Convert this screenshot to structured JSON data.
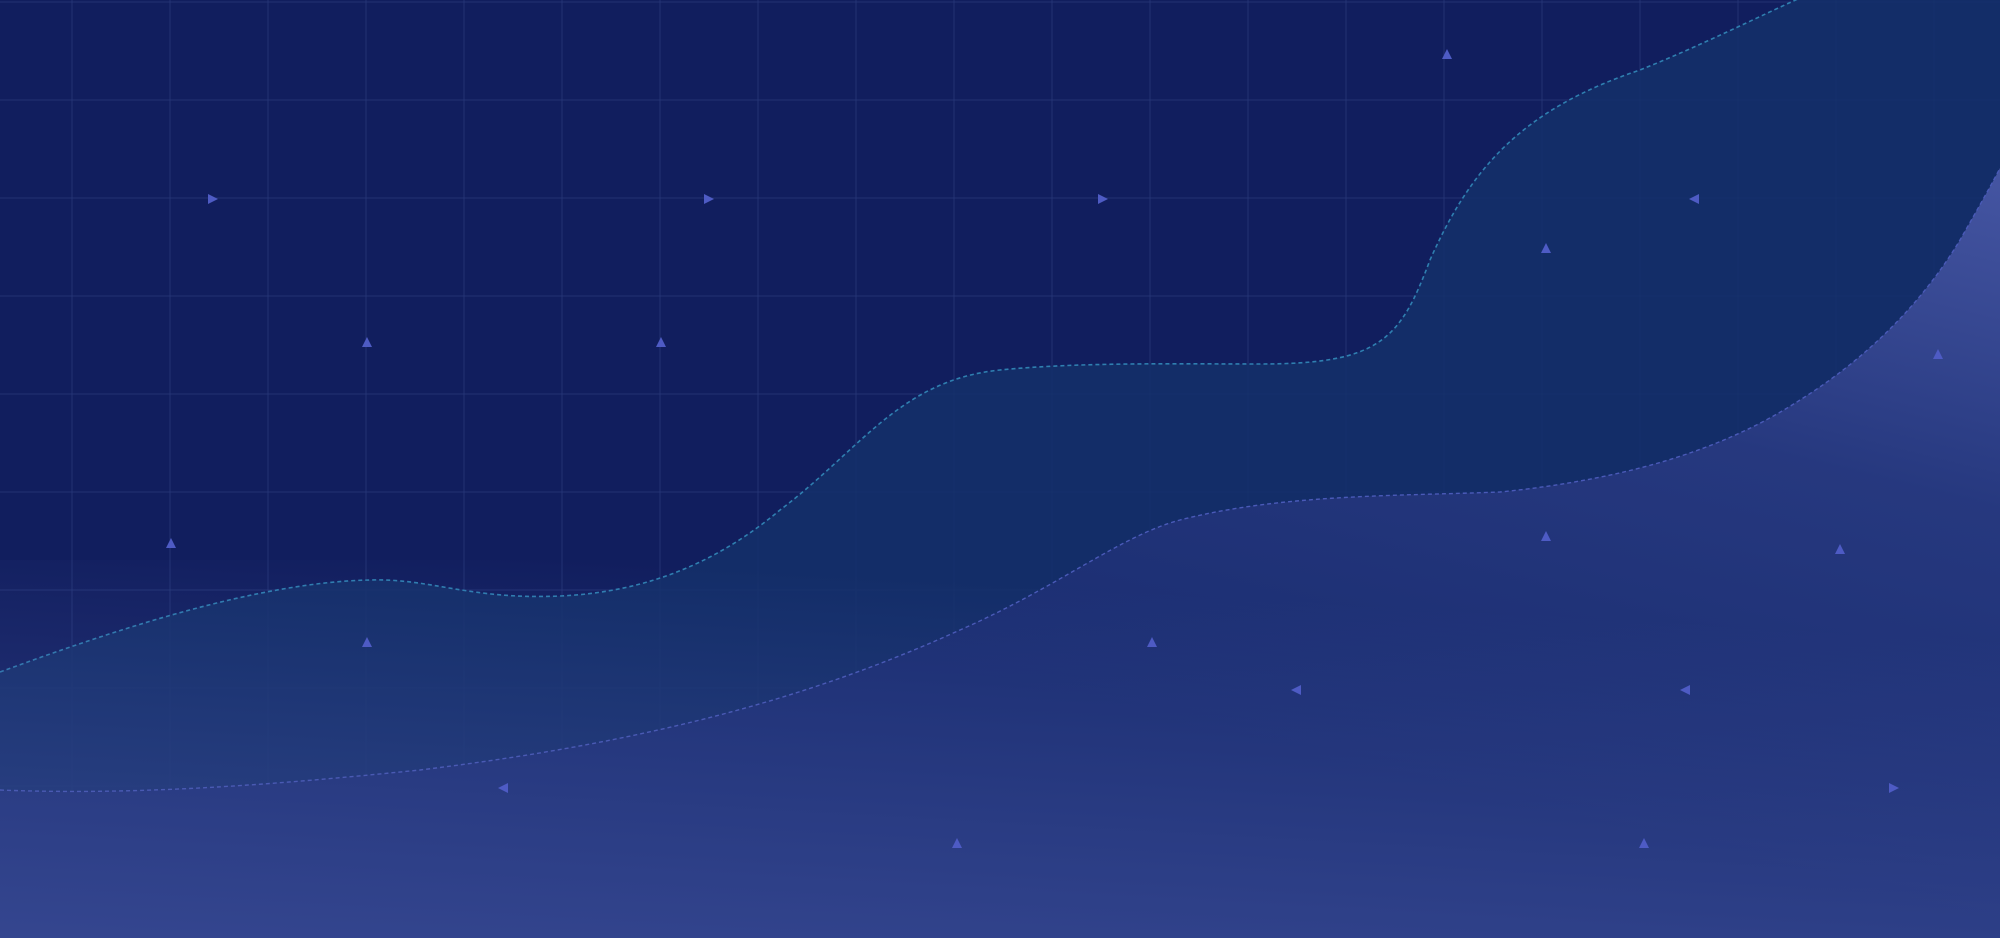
{
  "colors": {
    "background": "#111e5e",
    "grid_line": "#2a3a7c",
    "wave_upper_fill": "#14306a",
    "wave_upper_stroke": "#2f7fb0",
    "wave_lower_fill": "#1a2d72",
    "wave_lower_stroke": "#4a5ab8",
    "wave_lower_glow": "#4a5aa8",
    "marker": "#4e5bc4"
  },
  "grid": {
    "visible": true
  },
  "decorations": {
    "layers": [
      "wave-upper",
      "wave-lower"
    ],
    "marker_shape": "triangle",
    "marker_directions": [
      "right",
      "up",
      "left"
    ]
  }
}
